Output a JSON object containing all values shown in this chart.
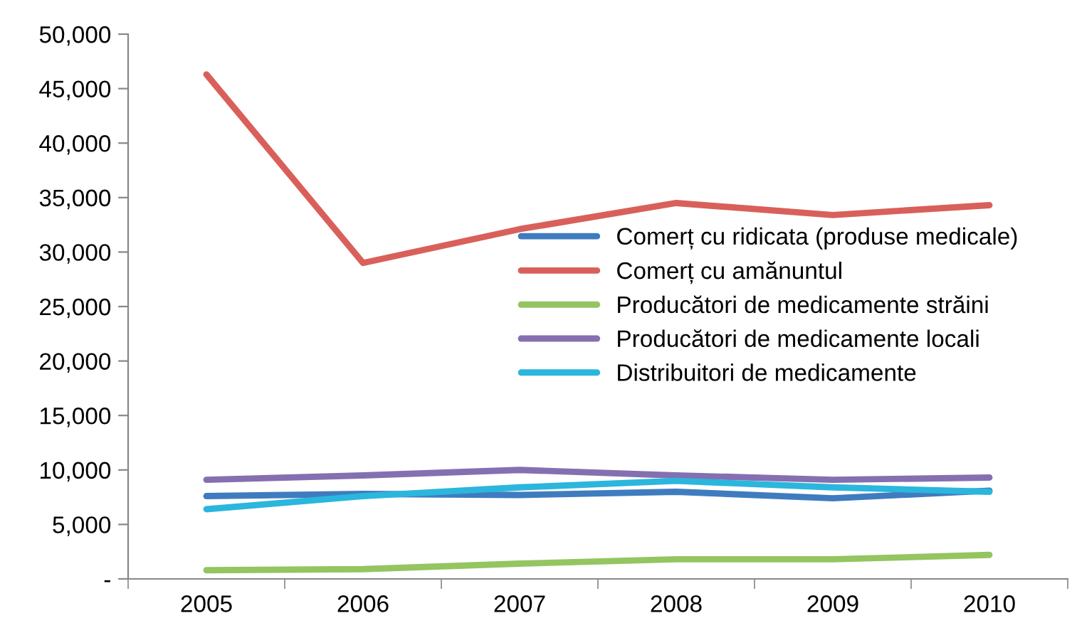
{
  "chart_data": {
    "type": "line",
    "categories": [
      "2005",
      "2006",
      "2007",
      "2008",
      "2009",
      "2010"
    ],
    "series": [
      {
        "name": "Comerț cu ridicata (produse medicale)",
        "color": "#3f7cbf",
        "values": [
          7600,
          7800,
          7700,
          8000,
          7400,
          8100
        ]
      },
      {
        "name": "Comerț cu amănuntul",
        "color": "#d9605a",
        "values": [
          46300,
          29000,
          32100,
          34500,
          33400,
          34300
        ]
      },
      {
        "name": "Producători de medicamente străini",
        "color": "#94c560",
        "values": [
          800,
          900,
          1400,
          1800,
          1800,
          2200
        ]
      },
      {
        "name": "Producători de medicamente locali",
        "color": "#8470b0",
        "values": [
          9100,
          9500,
          10000,
          9500,
          9100,
          9300
        ]
      },
      {
        "name": "Distribuitori de medicamente",
        "color": "#2bb6dd",
        "values": [
          6400,
          7600,
          8400,
          9000,
          8400,
          8000
        ]
      }
    ],
    "ylim": [
      0,
      50000
    ],
    "yticks": [
      {
        "value": 0,
        "label": "-"
      },
      {
        "value": 5000,
        "label": "5,000"
      },
      {
        "value": 10000,
        "label": "10,000"
      },
      {
        "value": 15000,
        "label": "15,000"
      },
      {
        "value": 20000,
        "label": "20,000"
      },
      {
        "value": 25000,
        "label": "25,000"
      },
      {
        "value": 30000,
        "label": "30,000"
      },
      {
        "value": 35000,
        "label": "35,000"
      },
      {
        "value": 40000,
        "label": "40,000"
      },
      {
        "value": 45000,
        "label": "45,000"
      },
      {
        "value": 50000,
        "label": "50,000"
      }
    ],
    "grid": false,
    "legend": "right",
    "marker": "none",
    "line_style": "solid"
  }
}
